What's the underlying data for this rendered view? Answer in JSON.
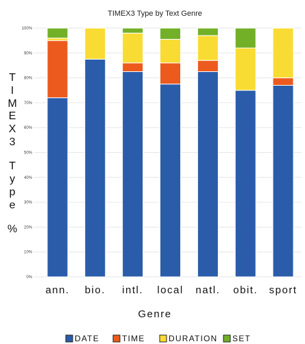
{
  "chart_data": {
    "type": "bar",
    "stacked": true,
    "title": "TIMEX3 Type by Text Genre",
    "xlabel": "Genre",
    "ylabel": "TIMEX3 Type %",
    "ylabel_chars": [
      "T",
      "I",
      "M",
      "E",
      "X",
      "3",
      "T",
      "y",
      "p",
      "e",
      "%"
    ],
    "categories": [
      "ann.",
      "bio.",
      "intl.",
      "local",
      "natl.",
      "obit.",
      "sport"
    ],
    "ylim": [
      0,
      100
    ],
    "yticks": [
      "0%",
      "10%",
      "20%",
      "30%",
      "40%",
      "50%",
      "60%",
      "70%",
      "80%",
      "90%",
      "100%"
    ],
    "legend_position": "bottom",
    "series": [
      {
        "name": "DATE",
        "color": "#2a5caa",
        "values": [
          72,
          87.5,
          82.5,
          77.5,
          82.5,
          75,
          77
        ]
      },
      {
        "name": "TIME",
        "color": "#ec5a1e",
        "values": [
          23,
          0,
          3.5,
          8.5,
          4.5,
          0,
          3
        ]
      },
      {
        "name": "DURATION",
        "color": "#f9dc33",
        "values": [
          1,
          12.5,
          12,
          9.5,
          10,
          17,
          20
        ]
      },
      {
        "name": "SET",
        "color": "#72b028",
        "values": [
          4,
          0,
          2,
          4.5,
          3,
          8,
          0
        ]
      }
    ]
  }
}
